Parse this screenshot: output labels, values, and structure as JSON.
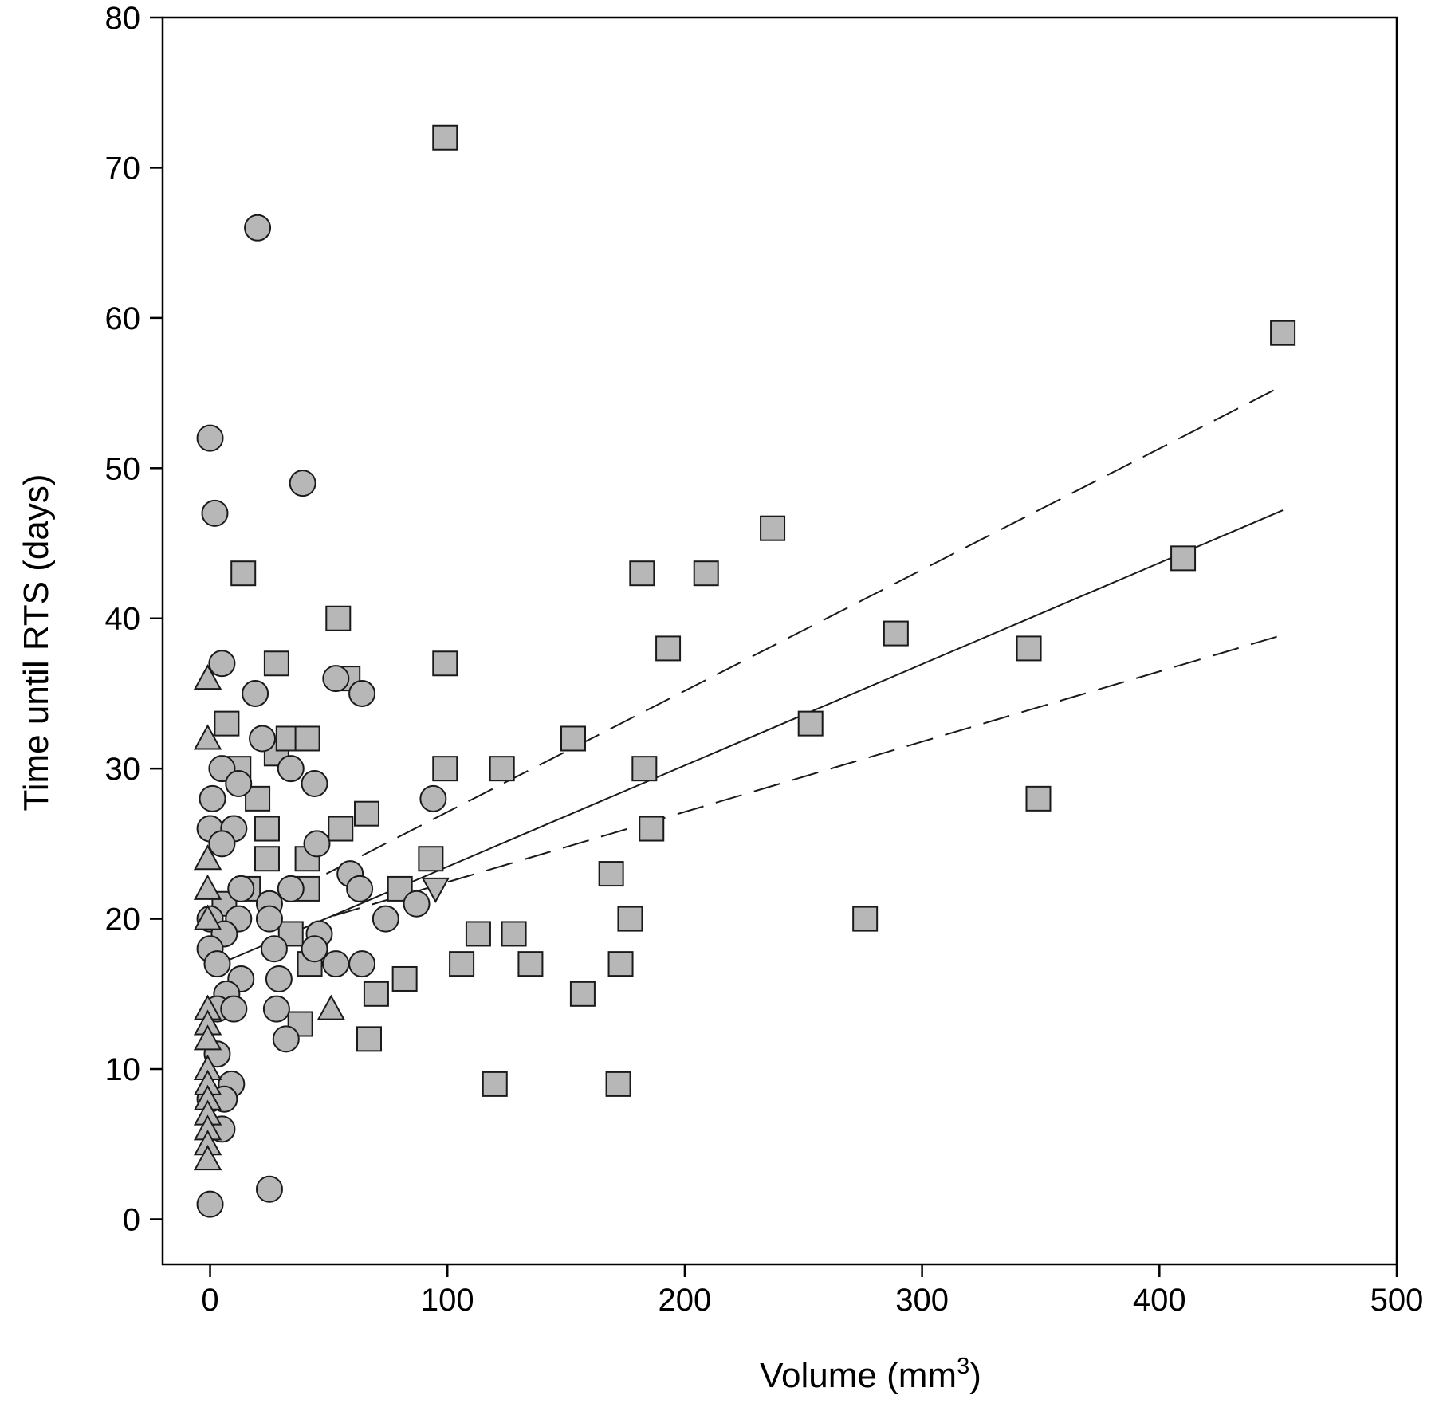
{
  "chart_data": {
    "type": "scatter",
    "xlabel": "Volume (mm",
    "xlabel_superscript": "3",
    "xlabel_suffix": ")",
    "ylabel": "Time until RTS (days)",
    "xlim": [
      -20,
      500
    ],
    "ylim": [
      -3,
      80
    ],
    "x_ticks": [
      0,
      100,
      200,
      300,
      400,
      500
    ],
    "y_ticks": [
      0,
      10,
      20,
      30,
      40,
      50,
      60,
      70,
      80
    ],
    "grid": false,
    "colors": {
      "marker_fill": "#b7b7b7",
      "marker_stroke": "#1a1a1a",
      "line": "#1a1a1a",
      "axis": "#000000"
    },
    "series": [
      {
        "marker": "square",
        "points": [
          [
            99,
            72
          ],
          [
            452,
            59
          ],
          [
            237,
            46
          ],
          [
            14,
            43
          ],
          [
            182,
            43
          ],
          [
            209,
            43
          ],
          [
            410,
            44
          ],
          [
            54,
            40
          ],
          [
            193,
            38
          ],
          [
            289,
            39
          ],
          [
            345,
            38
          ],
          [
            28,
            37
          ],
          [
            99,
            37
          ],
          [
            58,
            36
          ],
          [
            7,
            33
          ],
          [
            253,
            33
          ],
          [
            12,
            30
          ],
          [
            28,
            31
          ],
          [
            33,
            32
          ],
          [
            41,
            32
          ],
          [
            99,
            30
          ],
          [
            123,
            30
          ],
          [
            153,
            32
          ],
          [
            183,
            30
          ],
          [
            20,
            28
          ],
          [
            349,
            28
          ],
          [
            24,
            26
          ],
          [
            55,
            26
          ],
          [
            66,
            27
          ],
          [
            186,
            26
          ],
          [
            24,
            24
          ],
          [
            41,
            24
          ],
          [
            93,
            24
          ],
          [
            169,
            23
          ],
          [
            16,
            22
          ],
          [
            41,
            22
          ],
          [
            80,
            22
          ],
          [
            6,
            21
          ],
          [
            177,
            20
          ],
          [
            276,
            20
          ],
          [
            34,
            19
          ],
          [
            113,
            19
          ],
          [
            128,
            19
          ],
          [
            42,
            17
          ],
          [
            106,
            17
          ],
          [
            135,
            17
          ],
          [
            173,
            17
          ],
          [
            82,
            16
          ],
          [
            70,
            15
          ],
          [
            157,
            15
          ],
          [
            38,
            13
          ],
          [
            67,
            12
          ],
          [
            120,
            9
          ],
          [
            172,
            9
          ]
        ]
      },
      {
        "marker": "circle",
        "points": [
          [
            20,
            66
          ],
          [
            0,
            52
          ],
          [
            2,
            47
          ],
          [
            39,
            49
          ],
          [
            5,
            37
          ],
          [
            19,
            35
          ],
          [
            53,
            36
          ],
          [
            64,
            35
          ],
          [
            22,
            32
          ],
          [
            5,
            30
          ],
          [
            34,
            30
          ],
          [
            12,
            29
          ],
          [
            44,
            29
          ],
          [
            1,
            28
          ],
          [
            94,
            28
          ],
          [
            0,
            26
          ],
          [
            10,
            26
          ],
          [
            45,
            25
          ],
          [
            5,
            25
          ],
          [
            25,
            21
          ],
          [
            59,
            23
          ],
          [
            13,
            22
          ],
          [
            34,
            22
          ],
          [
            63,
            22
          ],
          [
            87,
            21
          ],
          [
            74,
            20
          ],
          [
            25,
            20
          ],
          [
            12,
            20
          ],
          [
            0,
            20
          ],
          [
            6,
            19
          ],
          [
            46,
            19
          ],
          [
            0,
            18
          ],
          [
            27,
            18
          ],
          [
            44,
            18
          ],
          [
            3,
            17
          ],
          [
            53,
            17
          ],
          [
            64,
            17
          ],
          [
            13,
            16
          ],
          [
            29,
            16
          ],
          [
            7,
            15
          ],
          [
            28,
            14
          ],
          [
            3,
            14
          ],
          [
            10,
            14
          ],
          [
            32,
            12
          ],
          [
            3,
            11
          ],
          [
            9,
            9
          ],
          [
            0,
            8
          ],
          [
            6,
            8
          ],
          [
            5,
            6
          ],
          [
            25,
            2
          ],
          [
            0,
            1
          ]
        ]
      },
      {
        "marker": "triangle-up",
        "points": [
          [
            -1,
            36
          ],
          [
            -1,
            32
          ],
          [
            -1,
            24
          ],
          [
            -1,
            22
          ],
          [
            -1,
            20
          ],
          [
            -1,
            14
          ],
          [
            -1,
            13
          ],
          [
            -1,
            12
          ],
          [
            -1,
            10
          ],
          [
            -1,
            9
          ],
          [
            -1,
            8
          ],
          [
            -1,
            7
          ],
          [
            -1,
            6
          ],
          [
            -1,
            5
          ],
          [
            -1,
            4
          ],
          [
            51,
            14
          ]
        ]
      },
      {
        "marker": "triangle-down",
        "points": [
          [
            95,
            22
          ]
        ]
      }
    ],
    "regression": {
      "fit": [
        [
          7,
          17.2
        ],
        [
          452,
          47.2
        ]
      ],
      "upper_ci": [
        [
          49,
          23
        ],
        [
          452,
          55.5
        ]
      ],
      "lower_ci": [
        [
          52,
          20.2
        ],
        [
          452,
          38.9
        ]
      ]
    }
  }
}
